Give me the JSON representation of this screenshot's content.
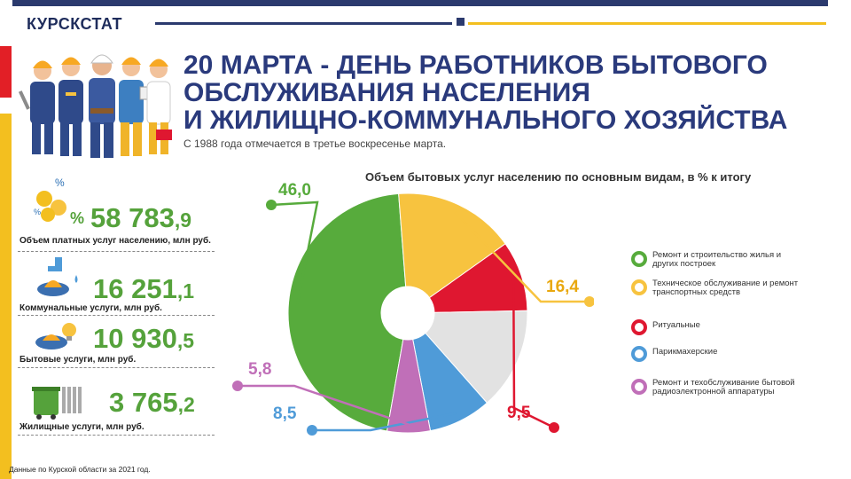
{
  "header": {
    "brand": "КУРСКСТАТ",
    "title_lines": [
      "20 МАРТА - ДЕНЬ РАБОТНИКОВ БЫТОВОГО",
      "ОБСЛУЖИВАНИЯ НАСЕЛЕНИЯ",
      "И ЖИЛИЩНО-КОММУНАЛЬНОГО ХОЗЯЙСТВА"
    ],
    "subtitle": "С 1988 года отмечается  в третье  воскресенье марта."
  },
  "stats": [
    {
      "int": "58 783",
      "dec": ",9",
      "label": "Объем платных услуг населению, млн руб.",
      "icon": "coins-percent-icon"
    },
    {
      "int": "16 251",
      "dec": ",1",
      "label": "Коммунальные услуги, млн руб.",
      "icon": "utilities-icon"
    },
    {
      "int": "10 930",
      "dec": ",5",
      "label": "Бытовые услуги, млн руб.",
      "icon": "household-services-icon"
    },
    {
      "int": "3 765",
      "dec": ",2",
      "label": "Жилищные услуги, млн руб.",
      "icon": "housing-icon"
    }
  ],
  "colors": {
    "green": "#57ab3c",
    "yellow": "#f7c33f",
    "red": "#df1730",
    "blue": "#4f9bd8",
    "pink": "#c06fb8",
    "gray": "#e2e2e2",
    "navy": "#2b3a6e"
  },
  "chart_data": {
    "type": "pie",
    "title": "Объем бытовых услуг  населению по основным видам, в % к итогу",
    "donut": true,
    "series": [
      {
        "name": "Ремонт и строительство жилья и других построек",
        "value": 46.0,
        "label": "46,0",
        "color": "#57ab3c"
      },
      {
        "name": "Техническое обслуживание и ремонт транспортных средств",
        "value": 16.4,
        "label": "16,4",
        "color": "#f7c33f"
      },
      {
        "name": "Ритуальные",
        "value": 9.5,
        "label": "9,5",
        "color": "#df1730"
      },
      {
        "value": 13.8,
        "color": "#e2e2e2"
      },
      {
        "name": "Парикмахерские",
        "value": 8.5,
        "label": "8,5",
        "color": "#4f9bd8"
      },
      {
        "name": "Ремонт и техобслуживание бытовой радиоэлектронной аппаратуры",
        "value": 5.8,
        "label": "5,8",
        "color": "#c06fb8"
      }
    ],
    "legend_position": "right"
  },
  "legend": [
    {
      "text": "Ремонт и строительство жилья и других построек",
      "color": "#57ab3c"
    },
    {
      "text": "Техническое обслуживание и ремонт транспортных средств",
      "color": "#f7c33f"
    },
    {
      "text": "Ритуальные",
      "color": "#df1730"
    },
    {
      "text": "Парикмахерские",
      "color": "#4f9bd8"
    },
    {
      "text": "Ремонт и техобслуживание бытовой радиоэлектронной аппаратуры",
      "color": "#c06fb8"
    }
  ],
  "footnote": "Данные по Курской области за 2021 год."
}
